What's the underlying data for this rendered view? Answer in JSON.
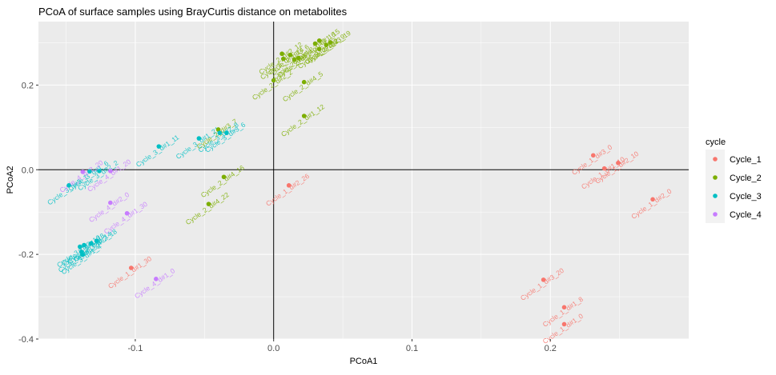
{
  "chart_data": {
    "type": "scatter",
    "title": "PCoA of surface samples using BrayCurtis distance on metabolites",
    "xlabel": "PCoA1",
    "ylabel": "PCoA2",
    "xlim": [
      -0.17,
      0.3
    ],
    "ylim": [
      -0.4,
      0.35
    ],
    "x_ticks": [
      -0.1,
      0.0,
      0.1,
      0.2
    ],
    "x_tick_labels": [
      "-0.1",
      "0.0",
      "0.1",
      "0.2"
    ],
    "y_ticks": [
      -0.4,
      -0.2,
      0.0,
      0.2
    ],
    "y_tick_labels": [
      "-0.4",
      "-0.2",
      "0.0",
      "0.2"
    ],
    "reference_lines": {
      "x": 0,
      "y": 0
    },
    "grid": true,
    "legend": {
      "title": "cycle",
      "position": "right"
    },
    "series": [
      {
        "name": "Cycle_1",
        "color": "#F8766D",
        "points": [
          {
            "x": 0.231,
            "y": 0.034,
            "label": "Cycle_1_d#3_0"
          },
          {
            "x": 0.239,
            "y": 0.003,
            "label": "Cycle_1_d#1_10"
          },
          {
            "x": 0.249,
            "y": 0.016,
            "label": "Cycle_1_d#2_10"
          },
          {
            "x": 0.274,
            "y": -0.07,
            "label": "Cycle_1_d#2_0"
          },
          {
            "x": 0.011,
            "y": -0.037,
            "label": "Cycle_1_d#2_26"
          },
          {
            "x": -0.103,
            "y": -0.232,
            "label": "Cycle_1_d#1_30"
          },
          {
            "x": 0.195,
            "y": -0.26,
            "label": "Cycle_1_d#3_20"
          },
          {
            "x": 0.21,
            "y": -0.325,
            "label": "Cycle_1_d#1_8"
          },
          {
            "x": 0.21,
            "y": -0.365,
            "label": "Cycle_1_d#1_0"
          }
        ]
      },
      {
        "name": "Cycle_2",
        "color": "#7CAE00",
        "points": [
          {
            "x": 0.006,
            "y": 0.274,
            "label": "Cycle_2_d#2_12"
          },
          {
            "x": 0.007,
            "y": 0.262,
            "label": "Cycle_2_d#2_14"
          },
          {
            "x": 0.012,
            "y": 0.271,
            "label": "Cycle_2_d#3_6"
          },
          {
            "x": 0.015,
            "y": 0.26,
            "label": "Cycle_2_d#1_4"
          },
          {
            "x": 0.018,
            "y": 0.264,
            "label": "Cycle_2_d#1_9"
          },
          {
            "x": 0.0,
            "y": 0.211,
            "label": "Cycle_2_d#2_2"
          },
          {
            "x": 0.03,
            "y": 0.298,
            "label": "Cycle_2_d#3_16"
          },
          {
            "x": 0.033,
            "y": 0.305,
            "label": "Cycle_2_d#1_15"
          },
          {
            "x": 0.038,
            "y": 0.295,
            "label": "Cycle_2_d#2_9"
          },
          {
            "x": 0.041,
            "y": 0.301,
            "label": "Cycle_2_d#3_19"
          },
          {
            "x": 0.033,
            "y": 0.285,
            "label": "Cycle_2_d#1_2"
          },
          {
            "x": 0.022,
            "y": 0.207,
            "label": "Cycle_2_d#4_5"
          },
          {
            "x": 0.022,
            "y": 0.127,
            "label": "Cycle_2_d#1_12"
          },
          {
            "x": -0.036,
            "y": -0.017,
            "label": "Cycle_2_d#4_16"
          },
          {
            "x": -0.047,
            "y": -0.081,
            "label": "Cycle_2_d#4_22"
          },
          {
            "x": -0.04,
            "y": 0.095,
            "label": "Cycle_2_d#3_7"
          }
        ]
      },
      {
        "name": "Cycle_3",
        "color": "#00BFC4",
        "points": [
          {
            "x": -0.083,
            "y": 0.055,
            "label": "Cycle_3_d#1_11"
          },
          {
            "x": -0.054,
            "y": 0.074,
            "label": "Cycle_3_d#1_21"
          },
          {
            "x": -0.039,
            "y": 0.087,
            "label": "Cycle_3_d#2_8"
          },
          {
            "x": -0.034,
            "y": 0.087,
            "label": "Cycle_3_d#3_6"
          },
          {
            "x": -0.126,
            "y": -0.003,
            "label": "Cycle_3_d#2_2"
          },
          {
            "x": -0.133,
            "y": -0.004,
            "label": "Cycle_3_d#1_6"
          },
          {
            "x": -0.148,
            "y": -0.037,
            "label": "Cycle_3_d#3_1"
          },
          {
            "x": -0.128,
            "y": -0.168,
            "label": "Cycle_3_d#2_18"
          },
          {
            "x": -0.132,
            "y": -0.174,
            "label": "Cycle_3_d#3_14"
          },
          {
            "x": -0.137,
            "y": -0.178,
            "label": "Cycle_3_d#1_18"
          },
          {
            "x": -0.14,
            "y": -0.182,
            "label": "Cycle_3_d#2_10"
          },
          {
            "x": -0.139,
            "y": -0.194,
            "label": "Cycle_3_d#3_24"
          },
          {
            "x": -0.138,
            "y": -0.201,
            "label": "Cycle_3_d#1_4"
          }
        ]
      },
      {
        "name": "Cycle_4",
        "color": "#C77CFF",
        "points": [
          {
            "x": -0.138,
            "y": -0.005,
            "label": "Cycle_4_d#2_20"
          },
          {
            "x": -0.118,
            "y": -0.003,
            "label": "Cycle_4_d#1_20"
          },
          {
            "x": -0.118,
            "y": -0.078,
            "label": "Cycle_4_d#2_0"
          },
          {
            "x": -0.106,
            "y": -0.103,
            "label": "Cycle_4_d#1_30"
          },
          {
            "x": -0.085,
            "y": -0.258,
            "label": "Cycle_4_d#1_0"
          }
        ]
      }
    ]
  }
}
